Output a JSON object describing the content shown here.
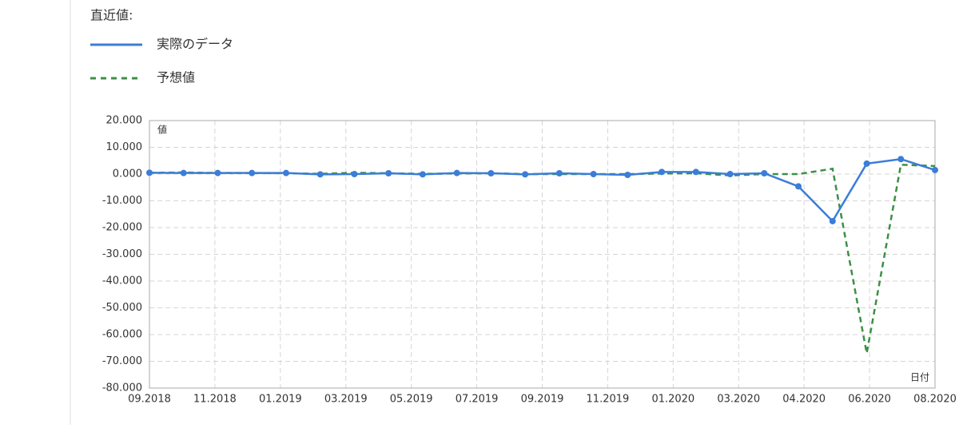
{
  "chart_data": {
    "type": "line",
    "title": "直近値:",
    "y_label": "値",
    "x_label": "日付",
    "x": [
      "2018-09",
      "2018-10",
      "2018-11",
      "2018-12",
      "2019-01",
      "2019-02",
      "2019-03",
      "2019-04",
      "2019-05",
      "2019-06",
      "2019-07",
      "2019-08",
      "2019-09",
      "2019-10",
      "2019-11",
      "2019-12",
      "2020-01",
      "2020-02",
      "2020-03",
      "2020-04",
      "2020-05",
      "2020-06",
      "2020-07",
      "2020-08"
    ],
    "xtick_labels": [
      "09.2018",
      "11.2018",
      "01.2019",
      "03.2019",
      "05.2019",
      "07.2019",
      "09.2019",
      "11.2019",
      "01.2020",
      "03.2020",
      "04.2020",
      "06.2020",
      "08.2020"
    ],
    "series": [
      {
        "name": "実際のデータ",
        "color": "#3b7dd8",
        "style": "solid",
        "values": [
          0.5,
          0.4,
          0.4,
          0.4,
          0.4,
          -0.1,
          0,
          0.3,
          -0.1,
          0.4,
          0.3,
          -0.1,
          0.3,
          0,
          -0.3,
          0.8,
          0.8,
          0,
          0.3,
          -4.6,
          -17.6,
          3.9,
          5.6,
          1.5
        ]
      },
      {
        "name": "予想値",
        "color": "#3d8f45",
        "style": "dashed",
        "values": [
          0.5,
          0.6,
          0.4,
          0.4,
          0.3,
          0.1,
          0.5,
          0.3,
          0.1,
          0.2,
          0.3,
          0,
          0,
          0,
          0,
          0.2,
          0.3,
          -0.5,
          0,
          0,
          2,
          -67,
          3.5,
          3
        ]
      }
    ],
    "ylim": [
      -80,
      20
    ],
    "yticks": [
      {
        "value": 20,
        "label": "20.000"
      },
      {
        "value": 10,
        "label": "10.000"
      },
      {
        "value": 0,
        "label": "0.000"
      },
      {
        "value": -10,
        "label": "-10.000"
      },
      {
        "value": -20,
        "label": "-20.000"
      },
      {
        "value": -30,
        "label": "-30.000"
      },
      {
        "value": -40,
        "label": "-40.000"
      },
      {
        "value": -50,
        "label": "-50.000"
      },
      {
        "value": -60,
        "label": "-60.000"
      },
      {
        "value": -70,
        "label": "-70.000"
      },
      {
        "value": -80,
        "label": "-80.000"
      }
    ],
    "grid": true
  }
}
